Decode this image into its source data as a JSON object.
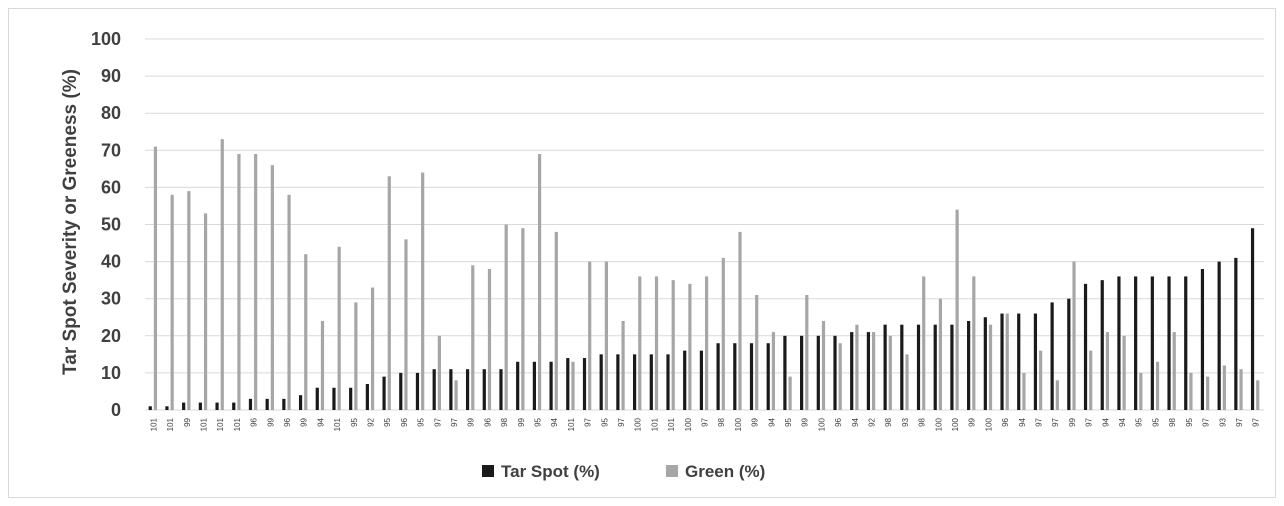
{
  "chart_data": {
    "type": "bar",
    "title": "",
    "xlabel": "",
    "ylabel": "Tar Spot Severity or Greeness (%)",
    "ylim": [
      0,
      100
    ],
    "yticks": [
      0,
      10,
      20,
      30,
      40,
      50,
      60,
      70,
      80,
      90,
      100
    ],
    "grid": "horizontal",
    "legend_position": "bottom",
    "categories": [
      "101",
      "101",
      "99",
      "101",
      "101",
      "101",
      "96",
      "99",
      "96",
      "99",
      "94",
      "101",
      "95",
      "92",
      "95",
      "96",
      "95",
      "97",
      "97",
      "99",
      "96",
      "98",
      "99",
      "95",
      "94",
      "101",
      "97",
      "95",
      "97",
      "100",
      "101",
      "101",
      "100",
      "97",
      "98",
      "100",
      "99",
      "94",
      "95",
      "99",
      "100",
      "96",
      "94",
      "92",
      "98",
      "93",
      "98",
      "100",
      "100",
      "99",
      "100",
      "96",
      "94",
      "97",
      "97",
      "99",
      "97",
      "94",
      "94",
      "95",
      "95",
      "98",
      "95",
      "97",
      "93",
      "97",
      "97"
    ],
    "series": [
      {
        "name": "Tar Spot (%)",
        "color": "#1a1a1a",
        "values": [
          1,
          1,
          2,
          2,
          2,
          2,
          3,
          3,
          3,
          4,
          6,
          6,
          6,
          7,
          9,
          10,
          10,
          11,
          11,
          11,
          11,
          11,
          13,
          13,
          13,
          14,
          14,
          15,
          15,
          15,
          15,
          15,
          16,
          16,
          18,
          18,
          18,
          18,
          20,
          20,
          20,
          20,
          21,
          21,
          23,
          23,
          23,
          23,
          23,
          24,
          25,
          26,
          26,
          26,
          29,
          30,
          34,
          35,
          36,
          36,
          36,
          36,
          36,
          38,
          40,
          41,
          49
        ]
      },
      {
        "name": "Green (%)",
        "color": "#a6a6a6",
        "values": [
          71,
          58,
          59,
          53,
          73,
          69,
          69,
          66,
          58,
          42,
          24,
          44,
          29,
          33,
          63,
          46,
          64,
          20,
          8,
          39,
          38,
          50,
          49,
          69,
          48,
          13,
          40,
          40,
          24,
          36,
          36,
          35,
          34,
          36,
          41,
          48,
          31,
          21,
          9,
          31,
          24,
          18,
          23,
          21,
          20,
          15,
          36,
          30,
          54,
          36,
          23,
          26,
          10,
          16,
          8,
          40,
          16,
          21,
          20,
          10,
          13,
          21,
          10,
          9,
          12,
          11,
          8
        ]
      }
    ]
  }
}
